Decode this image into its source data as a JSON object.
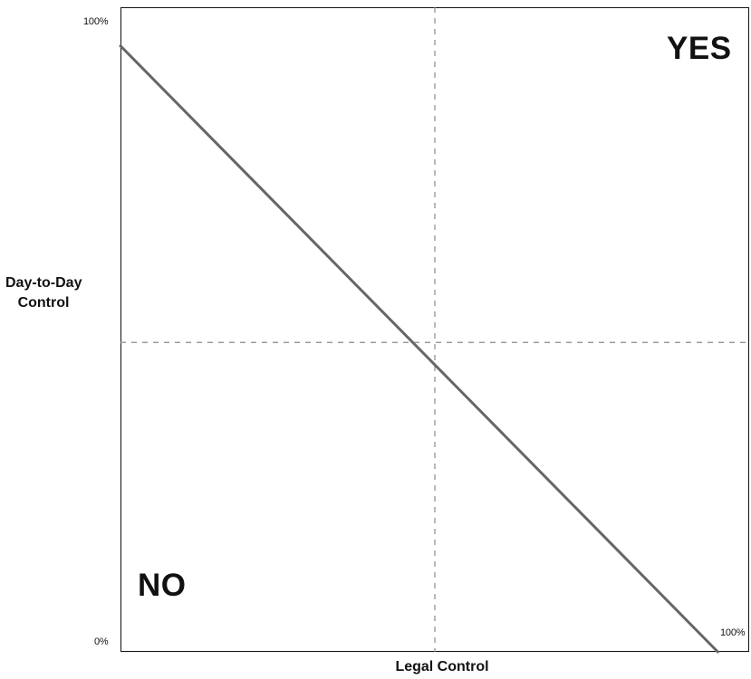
{
  "diagram": {
    "y_axis": {
      "label_line1": "Day-to-Day",
      "label_line2": "Control",
      "top_tick": "100%",
      "bottom_tick": "0%"
    },
    "x_axis": {
      "label": "Legal Control",
      "right_tick": "100%"
    },
    "regions": {
      "yes": "YES",
      "no": "NO"
    },
    "threshold_line": {
      "start": {
        "x": 0,
        "y": 94
      },
      "end": {
        "x": 95,
        "y": 0
      }
    },
    "guide_lines": {
      "x": 50,
      "y": 48
    },
    "colors": {
      "frame": "#111111",
      "diagonal": "#666666",
      "guides": "#8a8a8a"
    }
  }
}
